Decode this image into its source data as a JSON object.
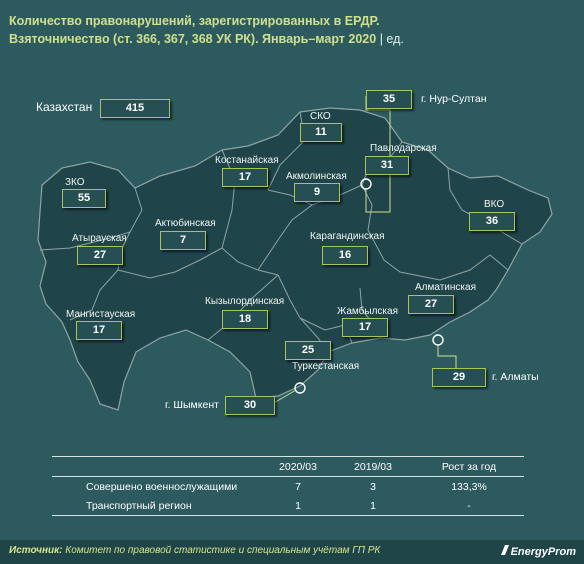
{
  "title": {
    "line1": "Количество правонарушений, зарегистрированных в ЕРДР.",
    "line2": "Взяточничество (ст. 366, 367, 368 УК РК). Январь–март 2020",
    "units": " | ед."
  },
  "kazakhstan": {
    "label": "Казахстан",
    "value": "415"
  },
  "regions": [
    {
      "id": "sko",
      "label": "СКО",
      "value": "11"
    },
    {
      "id": "kostanay",
      "label": "Костанайская",
      "value": "17"
    },
    {
      "id": "akmola",
      "label": "Акмолинская",
      "value": "9"
    },
    {
      "id": "pavlodar",
      "label": "Павлодарская",
      "value": "31"
    },
    {
      "id": "zko",
      "label": "ЗКО",
      "value": "55"
    },
    {
      "id": "aktobe",
      "label": "Актюбинская",
      "value": "7"
    },
    {
      "id": "vko",
      "label": "ВКО",
      "value": "36"
    },
    {
      "id": "atyrau",
      "label": "Атырауская",
      "value": "27"
    },
    {
      "id": "karaganda",
      "label": "Карагандинская",
      "value": "16"
    },
    {
      "id": "almaty-region",
      "label": "Алматинская",
      "value": "27"
    },
    {
      "id": "kyzylorda",
      "label": "Кызылординская",
      "value": "18"
    },
    {
      "id": "mangystau",
      "label": "Мангистауская",
      "value": "17"
    },
    {
      "id": "zhambyl",
      "label": "Жамбылская",
      "value": "17"
    },
    {
      "id": "turkestan",
      "label": "Туркестанская",
      "value": "25"
    }
  ],
  "cities": [
    {
      "id": "nur-sultan",
      "label": "г. Нур-Султан",
      "value": "35"
    },
    {
      "id": "almaty",
      "label": "г. Алматы",
      "value": "29"
    },
    {
      "id": "shymkent",
      "label": "г. Шымкент",
      "value": "30"
    }
  ],
  "table": {
    "headers": [
      "",
      "2020/03",
      "2019/03",
      "Рост за год"
    ],
    "rows": [
      [
        "Совершено военнослужащими",
        "7",
        "3",
        "133,3%"
      ],
      [
        "Транспортный регион",
        "1",
        "1",
        "-"
      ]
    ]
  },
  "source": {
    "prefix": "Источник:",
    "text": " Комитет по правовой статистике и специальным учётам ГП РК"
  },
  "brand": "EnergyProm",
  "colors": {
    "background": "#2d5a5f",
    "map_fill": "#1f4449",
    "region_border": "#8fa5a4",
    "value_box_border": "#a9c45a",
    "title": "#cfe08a"
  }
}
